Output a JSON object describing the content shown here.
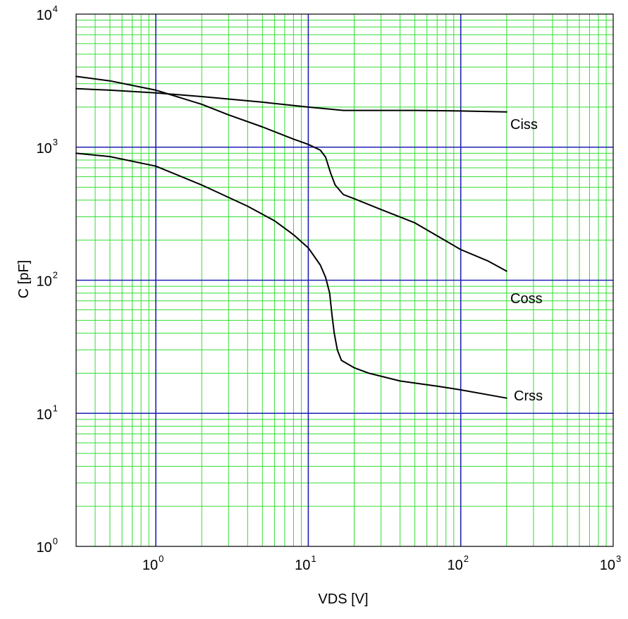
{
  "chart_data": {
    "type": "line",
    "title": "",
    "xlabel": "VDS [V]",
    "ylabel": "C [pF]",
    "x_scale": "log",
    "y_scale": "log",
    "xlim": [
      0.3,
      1000
    ],
    "ylim": [
      1,
      10000
    ],
    "grid": true,
    "grid_colors": {
      "major": "#1f1fb5",
      "minor": "#33dd33"
    },
    "line_color": "#000000",
    "x_ticks": [
      {
        "value": 1,
        "base": "10",
        "exp": "0"
      },
      {
        "value": 10,
        "base": "10",
        "exp": "1"
      },
      {
        "value": 100,
        "base": "10",
        "exp": "2"
      },
      {
        "value": 1000,
        "base": "10",
        "exp": "3"
      }
    ],
    "y_ticks": [
      {
        "value": 1,
        "base": "10",
        "exp": "0"
      },
      {
        "value": 10,
        "base": "10",
        "exp": "1"
      },
      {
        "value": 100,
        "base": "10",
        "exp": "2"
      },
      {
        "value": 1000,
        "base": "10",
        "exp": "3"
      },
      {
        "value": 10000,
        "base": "10",
        "exp": "4"
      }
    ],
    "series": [
      {
        "name": "Ciss",
        "points": [
          [
            0.3,
            2750
          ],
          [
            0.5,
            2680
          ],
          [
            1,
            2560
          ],
          [
            2,
            2400
          ],
          [
            5,
            2180
          ],
          [
            10,
            2000
          ],
          [
            14,
            1930
          ],
          [
            17,
            1890
          ],
          [
            20,
            1890
          ],
          [
            50,
            1890
          ],
          [
            100,
            1870
          ],
          [
            200,
            1840
          ]
        ]
      },
      {
        "name": "Coss",
        "points": [
          [
            0.3,
            3400
          ],
          [
            0.5,
            3150
          ],
          [
            1,
            2680
          ],
          [
            2,
            2100
          ],
          [
            3,
            1750
          ],
          [
            5,
            1420
          ],
          [
            8,
            1150
          ],
          [
            10,
            1050
          ],
          [
            12,
            950
          ],
          [
            13,
            840
          ],
          [
            14,
            640
          ],
          [
            15,
            520
          ],
          [
            17,
            440
          ],
          [
            20,
            410
          ],
          [
            30,
            340
          ],
          [
            50,
            270
          ],
          [
            100,
            170
          ],
          [
            150,
            140
          ],
          [
            200,
            117
          ]
        ]
      },
      {
        "name": "Crss",
        "points": [
          [
            0.3,
            900
          ],
          [
            0.5,
            850
          ],
          [
            1,
            720
          ],
          [
            2,
            520
          ],
          [
            4,
            360
          ],
          [
            6,
            280
          ],
          [
            8,
            220
          ],
          [
            10,
            175
          ],
          [
            12,
            130
          ],
          [
            13,
            105
          ],
          [
            13.8,
            80
          ],
          [
            14.3,
            55
          ],
          [
            14.8,
            40
          ],
          [
            15.5,
            30
          ],
          [
            16.5,
            25
          ],
          [
            20,
            22
          ],
          [
            25,
            20
          ],
          [
            40,
            17.5
          ],
          [
            70,
            16
          ],
          [
            100,
            15
          ],
          [
            150,
            13.8
          ],
          [
            200,
            13
          ]
        ]
      }
    ]
  }
}
